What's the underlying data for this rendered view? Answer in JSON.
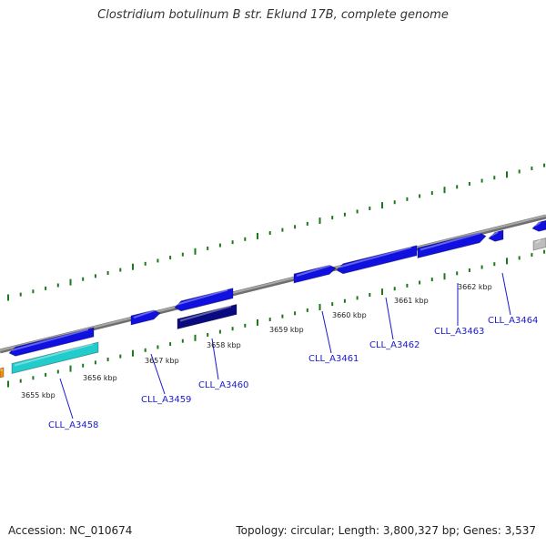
{
  "title": "Clostridium botulinum B str. Eklund 17B, complete genome",
  "footer": {
    "accession": "Accession: NC_010674",
    "summary": "Topology: circular; Length: 3,800,327 bp; Genes: 3,537"
  },
  "colors": {
    "gene_blue": "#1010e0",
    "gene_navy": "#0a0a80",
    "gene_cyan": "#22cccc",
    "gene_orange": "#f0900a",
    "gene_gray": "#bdbdbd",
    "backbone": "#808080",
    "tick_green": "#1a7a1a",
    "label_blue": "#1a1acc"
  },
  "scale_labels": [
    "3655 kbp",
    "3656 kbp",
    "3657 kbp",
    "3658 kbp",
    "3659 kbp",
    "3660 kbp",
    "3661 kbp",
    "3662 kbp"
  ],
  "gene_labels": [
    "CLL_A3458",
    "CLL_A3459",
    "CLL_A3460",
    "CLL_A3461",
    "CLL_A3462",
    "CLL_A3463",
    "CLL_A3464"
  ]
}
